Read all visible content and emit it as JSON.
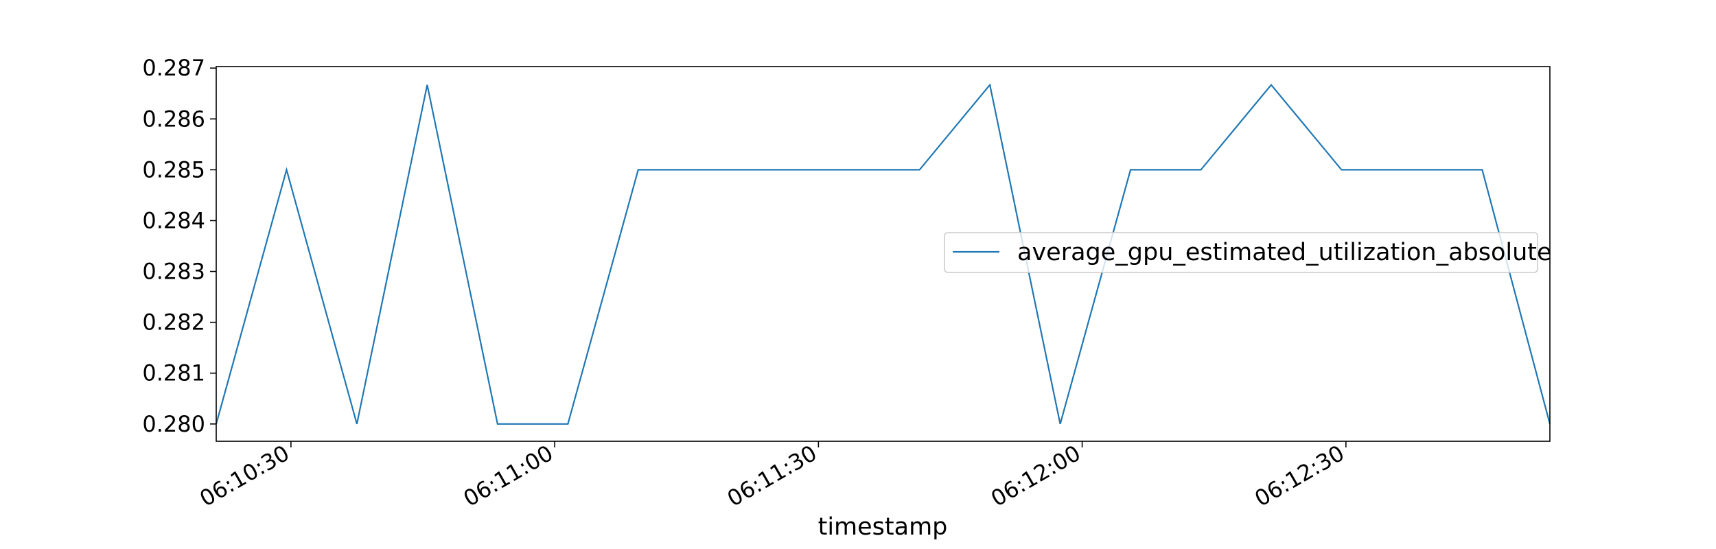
{
  "chart_data": {
    "type": "line",
    "title": "",
    "xlabel": "timestamp",
    "ylabel": "",
    "x_tick_labels": [
      "06:10:30",
      "06:11:00",
      "06:11:30",
      "06:12:00",
      "06:12:30"
    ],
    "y_tick_labels": [
      "0.280",
      "0.281",
      "0.282",
      "0.283",
      "0.284",
      "0.285",
      "0.286",
      "0.287"
    ],
    "ylim": [
      0.27966,
      0.28703
    ],
    "xlim": [
      "06:10:21.5",
      "06:12:53.2"
    ],
    "legend_position": "center-right",
    "grid": false,
    "series": [
      {
        "name": "average_gpu_estimated_utilization_absolute",
        "color": "#1f77b4",
        "x": [
          "06:10:21.5",
          "06:10:29.5",
          "06:10:37.5",
          "06:10:45.5",
          "06:10:53.5",
          "06:11:01.5",
          "06:11:09.5",
          "06:11:17.5",
          "06:11:25.5",
          "06:11:33.5",
          "06:11:41.5",
          "06:11:49.5",
          "06:11:57.5",
          "06:12:05.5",
          "06:12:13.5",
          "06:12:21.5",
          "06:12:29.5",
          "06:12:37.5",
          "06:12:45.5",
          "06:12:53.2"
        ],
        "y": [
          0.28,
          0.285,
          0.28,
          0.28667,
          0.28,
          0.28,
          0.285,
          0.285,
          0.285,
          0.285,
          0.285,
          0.28667,
          0.28,
          0.285,
          0.285,
          0.28667,
          0.285,
          0.285,
          0.285,
          0.28
        ]
      }
    ]
  }
}
